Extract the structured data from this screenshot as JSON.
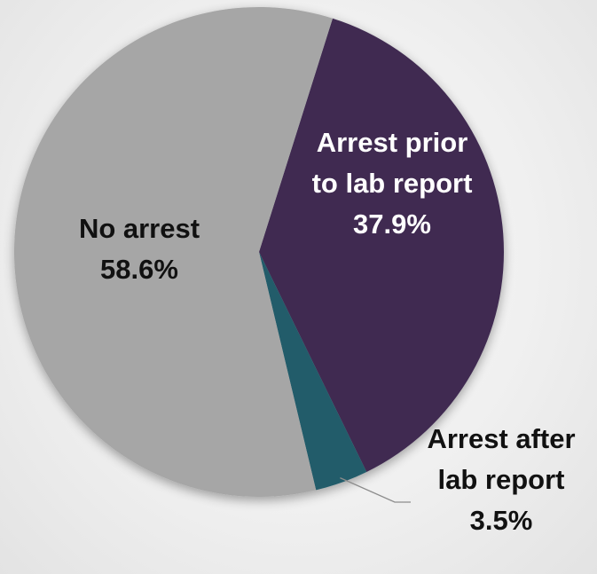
{
  "chart_data": {
    "type": "pie",
    "slices": [
      {
        "name": "Arrest prior to lab report",
        "label_lines": [
          "Arrest prior",
          "to lab report",
          "37.9%"
        ],
        "value": 37.9,
        "color": "#3f2c51",
        "text_color": "#ffffff"
      },
      {
        "name": "Arrest after lab report",
        "label_lines": [
          "Arrest after",
          "lab report",
          "3.5%"
        ],
        "value": 3.5,
        "color": "#225b6a",
        "text_color": "#111111"
      },
      {
        "name": "No arrest",
        "label_lines": [
          "No arrest",
          "58.6%"
        ],
        "value": 58.6,
        "color": "#a6a6a6",
        "text_color": "#111111"
      }
    ],
    "start_angle_deg": 17.5,
    "direction": "clockwise",
    "legend": "none",
    "title": ""
  }
}
